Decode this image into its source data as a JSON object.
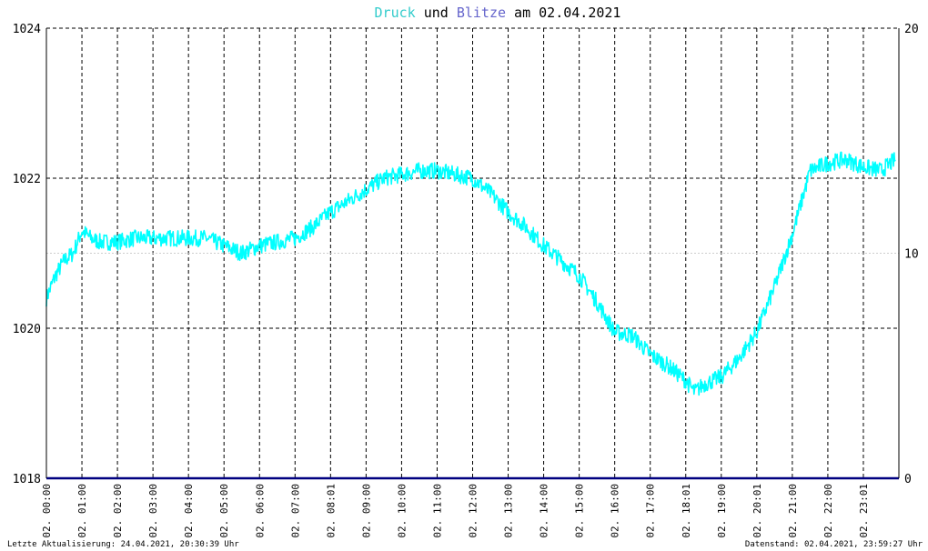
{
  "title": {
    "part1": "Druck",
    "part2": " und ",
    "part3": "Blitze",
    "part4": " am 02.04.2021"
  },
  "footer": {
    "left": "Letzte Aktualisierung: 24.04.2021, 20:30:39 Uhr",
    "right": "Datenstand: 02.04.2021, 23:59:27 Uhr"
  },
  "colors": {
    "druck": "#00ffff",
    "blitze": "#000080",
    "title_druck": "#33cccc",
    "title_blitze": "#6666cc",
    "grid": "#000000"
  },
  "chart_data": {
    "type": "line",
    "title": "Druck und Blitze am 02.04.2021",
    "x_range_hours": [
      0,
      24
    ],
    "y_left_range": [
      1018,
      1024
    ],
    "y_left_ticks": [
      "1018",
      "1020",
      "1022",
      "1024"
    ],
    "y_right_range": [
      0,
      20
    ],
    "y_right_ticks": [
      "0",
      "10",
      "20"
    ],
    "x_ticks": [
      {
        "hour": 0,
        "label": "02. 00:00"
      },
      {
        "hour": 1,
        "label": "02. 01:00"
      },
      {
        "hour": 2,
        "label": "02. 02:00"
      },
      {
        "hour": 3,
        "label": "02. 03:00"
      },
      {
        "hour": 4,
        "label": "02. 04:00"
      },
      {
        "hour": 5,
        "label": "02. 05:00"
      },
      {
        "hour": 6,
        "label": "02. 06:00"
      },
      {
        "hour": 7,
        "label": "02. 07:00"
      },
      {
        "hour": 8,
        "label": "02. 08:01"
      },
      {
        "hour": 9,
        "label": "02. 09:00"
      },
      {
        "hour": 10,
        "label": "02. 10:00"
      },
      {
        "hour": 11,
        "label": "02. 11:00"
      },
      {
        "hour": 12,
        "label": "02. 12:00"
      },
      {
        "hour": 13,
        "label": "02. 13:00"
      },
      {
        "hour": 14,
        "label": "02. 14:00"
      },
      {
        "hour": 15,
        "label": "02. 15:00"
      },
      {
        "hour": 16,
        "label": "02. 16:00"
      },
      {
        "hour": 17,
        "label": "02. 17:00"
      },
      {
        "hour": 18,
        "label": "02. 18:01"
      },
      {
        "hour": 19,
        "label": "02. 19:00"
      },
      {
        "hour": 20,
        "label": "02. 20:01"
      },
      {
        "hour": 21,
        "label": "02. 21:00"
      },
      {
        "hour": 22,
        "label": "02. 22:00"
      },
      {
        "hour": 23,
        "label": "02. 23:01"
      }
    ],
    "grid": true,
    "series": [
      {
        "name": "Druck",
        "axis": "left",
        "x": [
          0,
          0.25,
          0.5,
          0.75,
          1,
          1.25,
          1.5,
          2,
          2.5,
          3,
          3.5,
          4,
          4.5,
          5,
          5.5,
          6,
          6.5,
          7,
          7.5,
          8,
          8.5,
          9,
          9.5,
          10,
          10.5,
          11,
          11.5,
          12,
          12.5,
          13,
          13.5,
          14,
          14.5,
          15,
          15.5,
          16,
          16.5,
          17,
          17.5,
          18,
          18.25,
          18.5,
          18.75,
          19,
          19.5,
          20,
          20.5,
          21,
          21.5,
          22,
          22.5,
          23,
          23.5,
          23.9
        ],
        "y": [
          1020.4,
          1020.7,
          1020.9,
          1021.0,
          1021.3,
          1021.2,
          1021.15,
          1021.15,
          1021.2,
          1021.2,
          1021.2,
          1021.2,
          1021.2,
          1021.1,
          1021.0,
          1021.1,
          1021.15,
          1021.2,
          1021.35,
          1021.55,
          1021.7,
          1021.85,
          1022.0,
          1022.05,
          1022.1,
          1022.1,
          1022.05,
          1022.0,
          1021.8,
          1021.55,
          1021.35,
          1021.1,
          1020.9,
          1020.7,
          1020.35,
          1019.95,
          1019.9,
          1019.65,
          1019.5,
          1019.3,
          1019.15,
          1019.25,
          1019.3,
          1019.35,
          1019.6,
          1019.95,
          1020.55,
          1021.25,
          1022.1,
          1022.2,
          1022.25,
          1022.15,
          1022.1,
          1022.25
        ]
      },
      {
        "name": "Blitze",
        "axis": "right",
        "x": [
          0,
          24
        ],
        "y": [
          0,
          0
        ]
      }
    ]
  }
}
